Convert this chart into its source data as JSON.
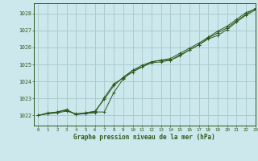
{
  "title": "Graphe pression niveau de la mer (hPa)",
  "bg_color": "#cce8ed",
  "grid_color": "#aacccc",
  "line_color": "#2d5a1b",
  "marker_color": "#2d5a1b",
  "xlim": [
    -0.5,
    23
  ],
  "ylim": [
    1021.4,
    1028.6
  ],
  "yticks": [
    1022,
    1023,
    1024,
    1025,
    1026,
    1027,
    1028
  ],
  "xticks": [
    0,
    1,
    2,
    3,
    4,
    5,
    6,
    7,
    8,
    9,
    10,
    11,
    12,
    13,
    14,
    15,
    16,
    17,
    18,
    19,
    20,
    21,
    22,
    23
  ],
  "series1": [
    1022.0,
    1022.15,
    1022.2,
    1022.35,
    1022.05,
    1022.15,
    1022.2,
    1022.2,
    1023.35,
    1024.15,
    1024.65,
    1024.85,
    1025.15,
    1025.25,
    1025.25,
    1025.55,
    1025.85,
    1026.15,
    1026.55,
    1026.85,
    1027.15,
    1027.55,
    1027.95,
    1028.3
  ],
  "series2": [
    1022.0,
    1022.1,
    1022.2,
    1022.3,
    1022.05,
    1022.1,
    1022.15,
    1023.05,
    1023.85,
    1024.2,
    1024.55,
    1024.85,
    1025.1,
    1025.15,
    1025.25,
    1025.5,
    1025.85,
    1026.15,
    1026.5,
    1026.7,
    1027.05,
    1027.5,
    1027.9,
    1028.2
  ],
  "series3": [
    1022.0,
    1022.1,
    1022.15,
    1022.25,
    1022.1,
    1022.15,
    1022.25,
    1022.95,
    1023.75,
    1024.25,
    1024.65,
    1024.95,
    1025.15,
    1025.25,
    1025.35,
    1025.65,
    1025.95,
    1026.25,
    1026.6,
    1026.95,
    1027.25,
    1027.65,
    1028.05,
    1028.25
  ]
}
